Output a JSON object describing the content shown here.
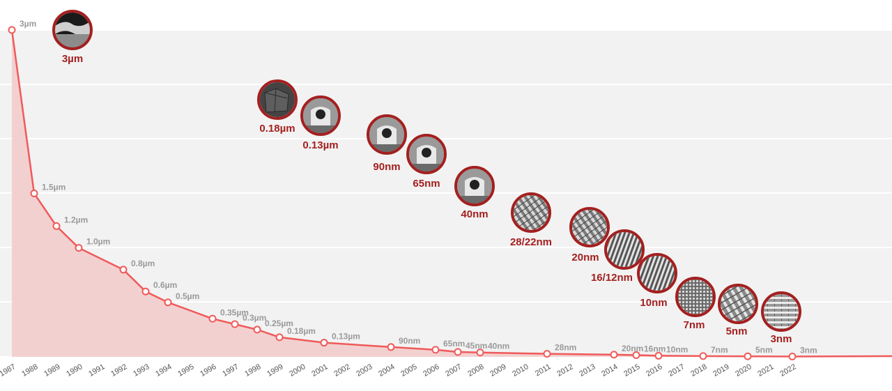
{
  "chart_data": {
    "type": "area",
    "title": "",
    "xlabel": "",
    "ylabel": "",
    "x_ticks": [
      "1987",
      "1988",
      "1989",
      "1990",
      "1991",
      "1992",
      "1993",
      "1994",
      "1995",
      "1996",
      "1997",
      "1998",
      "1999",
      "2000",
      "2001",
      "2002",
      "2003",
      "2004",
      "2005",
      "2006",
      "2007",
      "2008",
      "2009",
      "2010",
      "2011",
      "2012",
      "2013",
      "2014",
      "2015",
      "2016",
      "2017",
      "2018",
      "2019",
      "2020",
      "2021",
      "2022"
    ],
    "xlim": [
      1987,
      2022
    ],
    "ylim_um": [
      0,
      3
    ],
    "grid": true,
    "series": [
      {
        "points": [
          {
            "x": 1987,
            "y_um": 3.0,
            "label": "3µm"
          },
          {
            "x": 1988,
            "y_um": 1.5,
            "label": "1.5µm"
          },
          {
            "x": 1989,
            "y_um": 1.2,
            "label": "1.2µm"
          },
          {
            "x": 1990,
            "y_um": 1.0,
            "label": "1.0µm"
          },
          {
            "x": 1992,
            "y_um": 0.8,
            "label": "0.8µm"
          },
          {
            "x": 1993,
            "y_um": 0.6,
            "label": "0.6µm"
          },
          {
            "x": 1994,
            "y_um": 0.5,
            "label": "0.5µm"
          },
          {
            "x": 1996,
            "y_um": 0.35,
            "label": "0.35µm"
          },
          {
            "x": 1997,
            "y_um": 0.3,
            "label": "0.3µm"
          },
          {
            "x": 1998,
            "y_um": 0.25,
            "label": "0.25µm"
          },
          {
            "x": 1999,
            "y_um": 0.18,
            "label": "0.18µm"
          },
          {
            "x": 2001,
            "y_um": 0.13,
            "label": "0.13µm"
          },
          {
            "x": 2004,
            "y_um": 0.09,
            "label": "90nm"
          },
          {
            "x": 2006,
            "y_um": 0.065,
            "label": "65nm"
          },
          {
            "x": 2007,
            "y_um": 0.045,
            "label": "45nm"
          },
          {
            "x": 2008,
            "y_um": 0.04,
            "label": "40nm"
          },
          {
            "x": 2011,
            "y_um": 0.028,
            "label": "28nm"
          },
          {
            "x": 2014,
            "y_um": 0.02,
            "label": "20nm"
          },
          {
            "x": 2015,
            "y_um": 0.016,
            "label": "16nm"
          },
          {
            "x": 2016,
            "y_um": 0.01,
            "label": "10nm"
          },
          {
            "x": 2018,
            "y_um": 0.007,
            "label": "7nm"
          },
          {
            "x": 2020,
            "y_um": 0.005,
            "label": "5nm"
          },
          {
            "x": 2022,
            "y_um": 0.003,
            "label": "3nm"
          }
        ]
      }
    ],
    "highlight_nodes": [
      {
        "label": "3µm",
        "image": "wafer-cross-section"
      },
      {
        "label": "0.18µm",
        "image": "transistor-block"
      },
      {
        "label": "0.13µm",
        "image": "transistor-gate"
      },
      {
        "label": "90nm",
        "image": "transistor-gate"
      },
      {
        "label": "65nm",
        "image": "transistor-gate"
      },
      {
        "label": "40nm",
        "image": "transistor-gate"
      },
      {
        "label": "28/22nm",
        "image": "finfet-array"
      },
      {
        "label": "20nm",
        "image": "finfet-array"
      },
      {
        "label": "16/12nm",
        "image": "fin-lines"
      },
      {
        "label": "10nm",
        "image": "fin-lines"
      },
      {
        "label": "7nm",
        "image": "dense-mesh"
      },
      {
        "label": "5nm",
        "image": "stacked-fins"
      },
      {
        "label": "3nm",
        "image": "nanosheet-layers"
      }
    ],
    "colors": {
      "line": "#ef5a5a",
      "area": "#f3d0d0",
      "grid_band": "#f2f2f2",
      "node_ring": "#a32020",
      "node_label": "#a32020",
      "point_label": "#9a9a9a"
    }
  }
}
